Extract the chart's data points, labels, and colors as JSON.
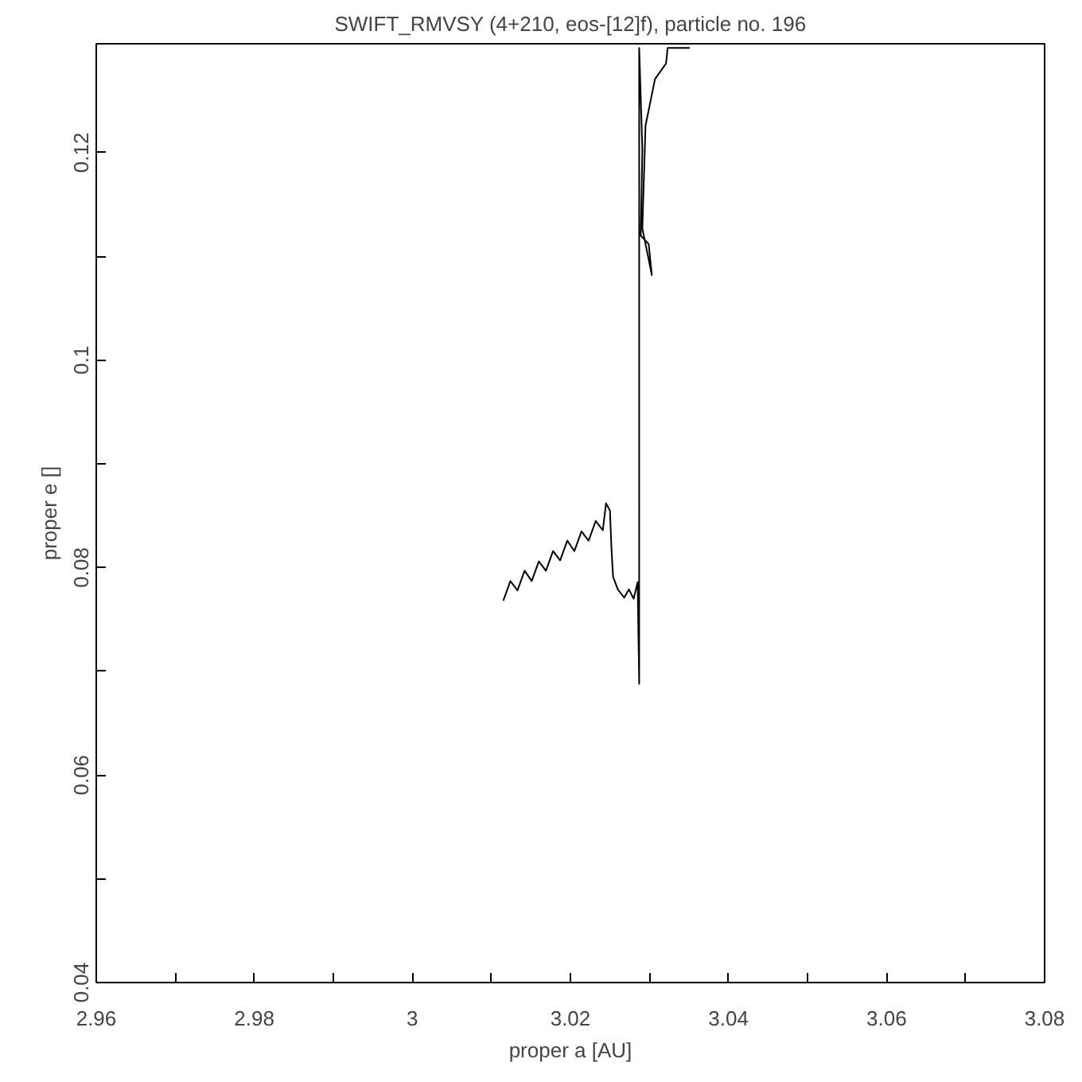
{
  "chart_data": {
    "type": "line",
    "title": "SWIFT_RMVSY (4+210, eos-[12]f), particle no. 196",
    "xlabel": "proper a [AU]",
    "ylabel": "proper e []",
    "xlim": [
      2.96,
      3.08
    ],
    "ylim": [
      0.04,
      0.1305
    ],
    "xticks": [
      2.96,
      {
        "value": 2.97,
        "label": null
      },
      2.98,
      {
        "value": 2.99,
        "label": null
      },
      3,
      {
        "value": 3.01,
        "label": null
      },
      3.02,
      {
        "value": 3.03,
        "label": null
      },
      3.04,
      {
        "value": 3.05,
        "label": null
      },
      3.06,
      {
        "value": 3.07,
        "label": null
      },
      3.08
    ],
    "yticks": [
      0.04,
      {
        "value": 0.05,
        "label": null
      },
      0.06,
      {
        "value": 0.07,
        "label": null
      },
      0.08,
      {
        "value": 0.09,
        "label": null
      },
      0.1,
      {
        "value": 0.11,
        "label": null
      },
      0.12
    ],
    "grid": false,
    "marker": "none",
    "line_style": "solid",
    "series": [
      {
        "color": "#000000",
        "x": [
          3.0115,
          3.0124,
          3.0133,
          3.0142,
          3.0151,
          3.016,
          3.0169,
          3.0178,
          3.0187,
          3.0196,
          3.0205,
          3.0214,
          3.0223,
          3.0232,
          3.0241,
          3.0245,
          3.025,
          3.0252,
          3.0254,
          3.026,
          3.0268,
          3.0274,
          3.028,
          3.0285,
          3.0287,
          3.0287,
          3.0291,
          3.0289,
          3.0299,
          3.0303,
          3.0291,
          3.0295,
          3.0307,
          3.0321,
          3.0323,
          3.0351
        ],
        "values": [
          0.0768,
          0.0787,
          0.0778,
          0.0797,
          0.0787,
          0.0806,
          0.0797,
          0.0816,
          0.0807,
          0.0826,
          0.0816,
          0.0835,
          0.0826,
          0.0845,
          0.0836,
          0.0862,
          0.0855,
          0.0817,
          0.0791,
          0.0779,
          0.0771,
          0.0779,
          0.077,
          0.0786,
          0.0688,
          0.1301,
          0.1203,
          0.112,
          0.1112,
          0.1082,
          0.1127,
          0.1226,
          0.1271,
          0.1286,
          0.1301,
          0.1301
        ]
      }
    ]
  }
}
